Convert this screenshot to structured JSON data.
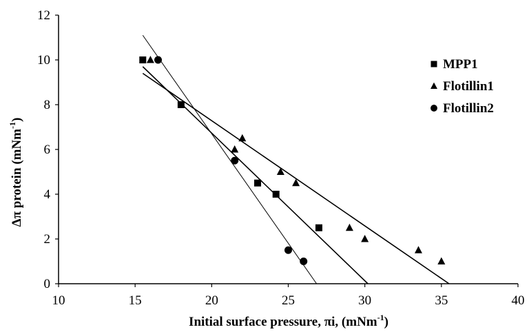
{
  "chart_data": {
    "type": "scatter",
    "xlabel": "Initial surface pressure, πi, (mNm",
    "xlabel_sup": "-1",
    "xlabel_tail": ")",
    "ylabel": "Δπ protein (mNm",
    "ylabel_sup": "-1",
    "ylabel_tail": ")",
    "xlim": [
      10,
      40
    ],
    "ylim": [
      0,
      12
    ],
    "xticks": [
      10,
      15,
      20,
      25,
      30,
      35,
      40
    ],
    "yticks": [
      0,
      2,
      4,
      6,
      8,
      10,
      12
    ],
    "grid": false,
    "legend_position": "top-right",
    "series": [
      {
        "name": "MPP1",
        "marker": "square",
        "points": [
          [
            15.5,
            10
          ],
          [
            18,
            8
          ],
          [
            23,
            4.5
          ],
          [
            24.2,
            4
          ],
          [
            27,
            2.5
          ]
        ],
        "fit": {
          "x": [
            15.5,
            30.2
          ],
          "y": [
            9.7,
            0
          ]
        }
      },
      {
        "name": "Flotillin1",
        "marker": "triangle",
        "points": [
          [
            16,
            10
          ],
          [
            21.5,
            6
          ],
          [
            22,
            6.5
          ],
          [
            24.5,
            5
          ],
          [
            25.5,
            4.5
          ],
          [
            29,
            2.5
          ],
          [
            30,
            2
          ],
          [
            33.5,
            1.5
          ],
          [
            35,
            1
          ]
        ],
        "fit": {
          "x": [
            15.5,
            35.5
          ],
          "y": [
            9.4,
            0
          ]
        }
      },
      {
        "name": "Flotillin2",
        "marker": "circle",
        "points": [
          [
            16.5,
            10
          ],
          [
            21.5,
            5.5
          ],
          [
            25,
            1.5
          ],
          [
            26,
            1
          ]
        ],
        "fit": {
          "x": [
            15.5,
            26.85
          ],
          "y": [
            11.1,
            0
          ]
        }
      }
    ]
  }
}
